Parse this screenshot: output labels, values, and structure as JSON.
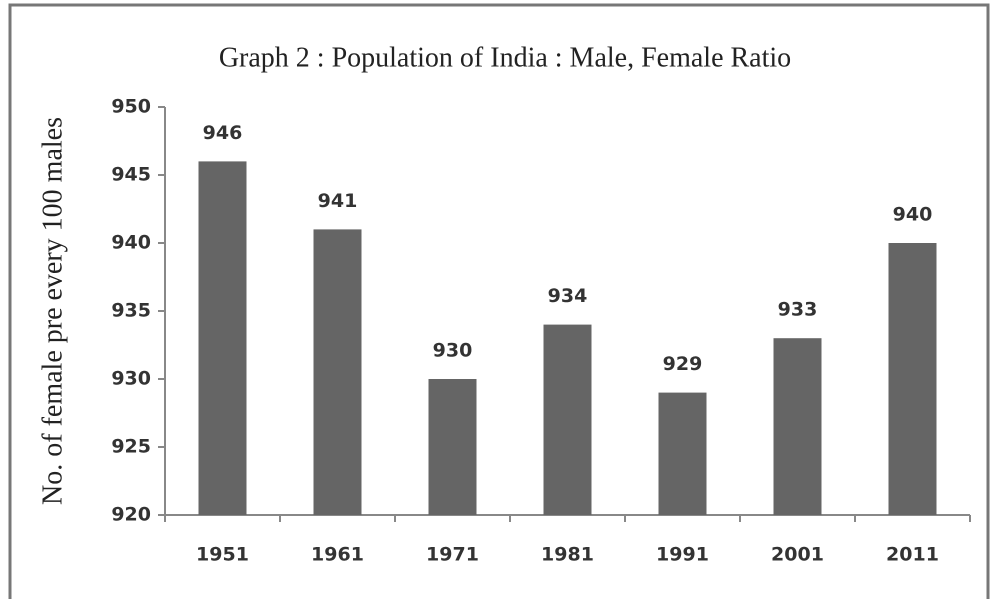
{
  "chart_data": {
    "type": "bar",
    "title": "Graph 2 : Population of India : Male, Female Ratio",
    "y_label": "No. of female pre every 100 males",
    "categories": [
      "1951",
      "1961",
      "1971",
      "1981",
      "1991",
      "2001",
      "2011"
    ],
    "values": [
      946,
      941,
      930,
      934,
      929,
      933,
      940
    ],
    "color": "#656565",
    "ylim": [
      920,
      950
    ],
    "yticks": [
      920,
      925,
      930,
      935,
      940,
      945,
      950
    ],
    "grid": false
  }
}
